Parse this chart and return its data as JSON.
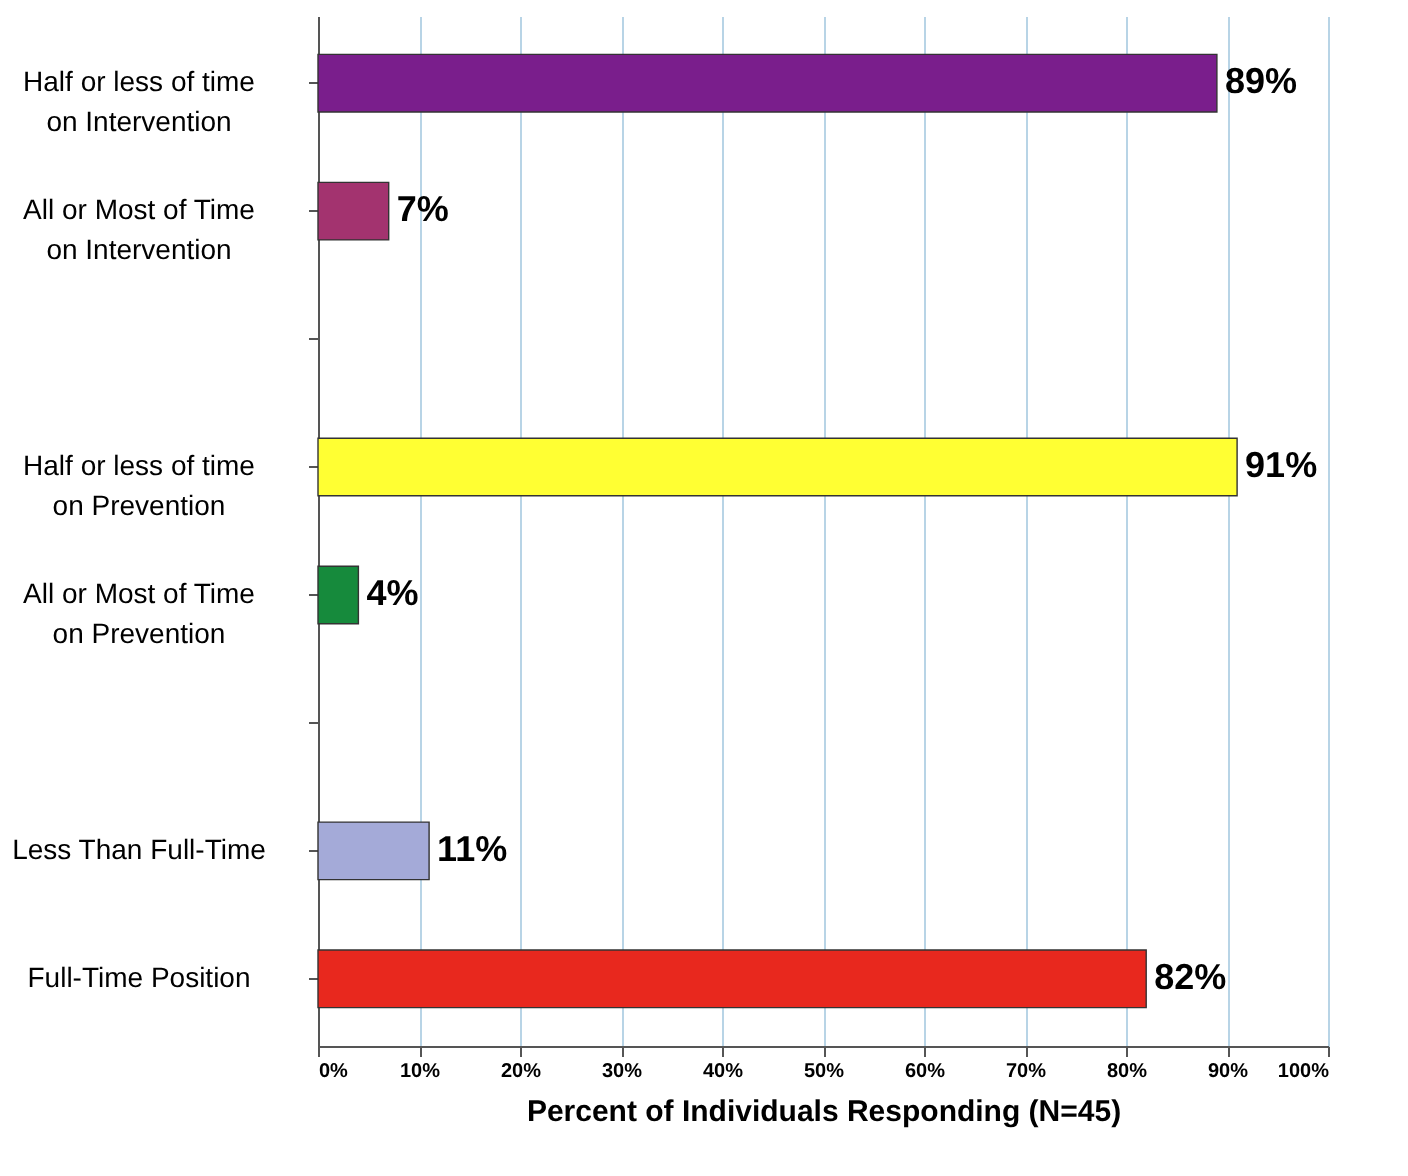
{
  "chart_data": {
    "type": "bar",
    "orientation": "horizontal",
    "xlabel": "Percent of Individuals Responding (N=45)",
    "categories": [
      "Half or less of time on Intervention",
      "All or Most of Time on Intervention",
      null,
      "Half or less of time on Prevention",
      "All or Most of Time on Prevention",
      null,
      "Less Than Full-Time",
      "Full-Time Position"
    ],
    "values": [
      89,
      7,
      null,
      91,
      4,
      null,
      11,
      82
    ],
    "colors": [
      "#7a1e8c",
      "#a3336f",
      null,
      "#ffff33",
      "#168a3c",
      null,
      "#a4aad8",
      "#e8281e"
    ],
    "value_labels": [
      "89%",
      "7%",
      null,
      "91%",
      "4%",
      null,
      "11%",
      "82%"
    ],
    "xlim": [
      0,
      100
    ],
    "xticks": [
      {
        "value": 0,
        "label": "0%"
      },
      {
        "value": 10,
        "label": "10%"
      },
      {
        "value": 20,
        "label": "20%"
      },
      {
        "value": 30,
        "label": "30%"
      },
      {
        "value": 40,
        "label": "40%"
      },
      {
        "value": 50,
        "label": "50%"
      },
      {
        "value": 60,
        "label": "60%"
      },
      {
        "value": 70,
        "label": "70%"
      },
      {
        "value": 80,
        "label": "80%"
      },
      {
        "value": 90,
        "label": "90%"
      },
      {
        "value": 100,
        "label": "100%"
      }
    ],
    "grid": "x"
  }
}
